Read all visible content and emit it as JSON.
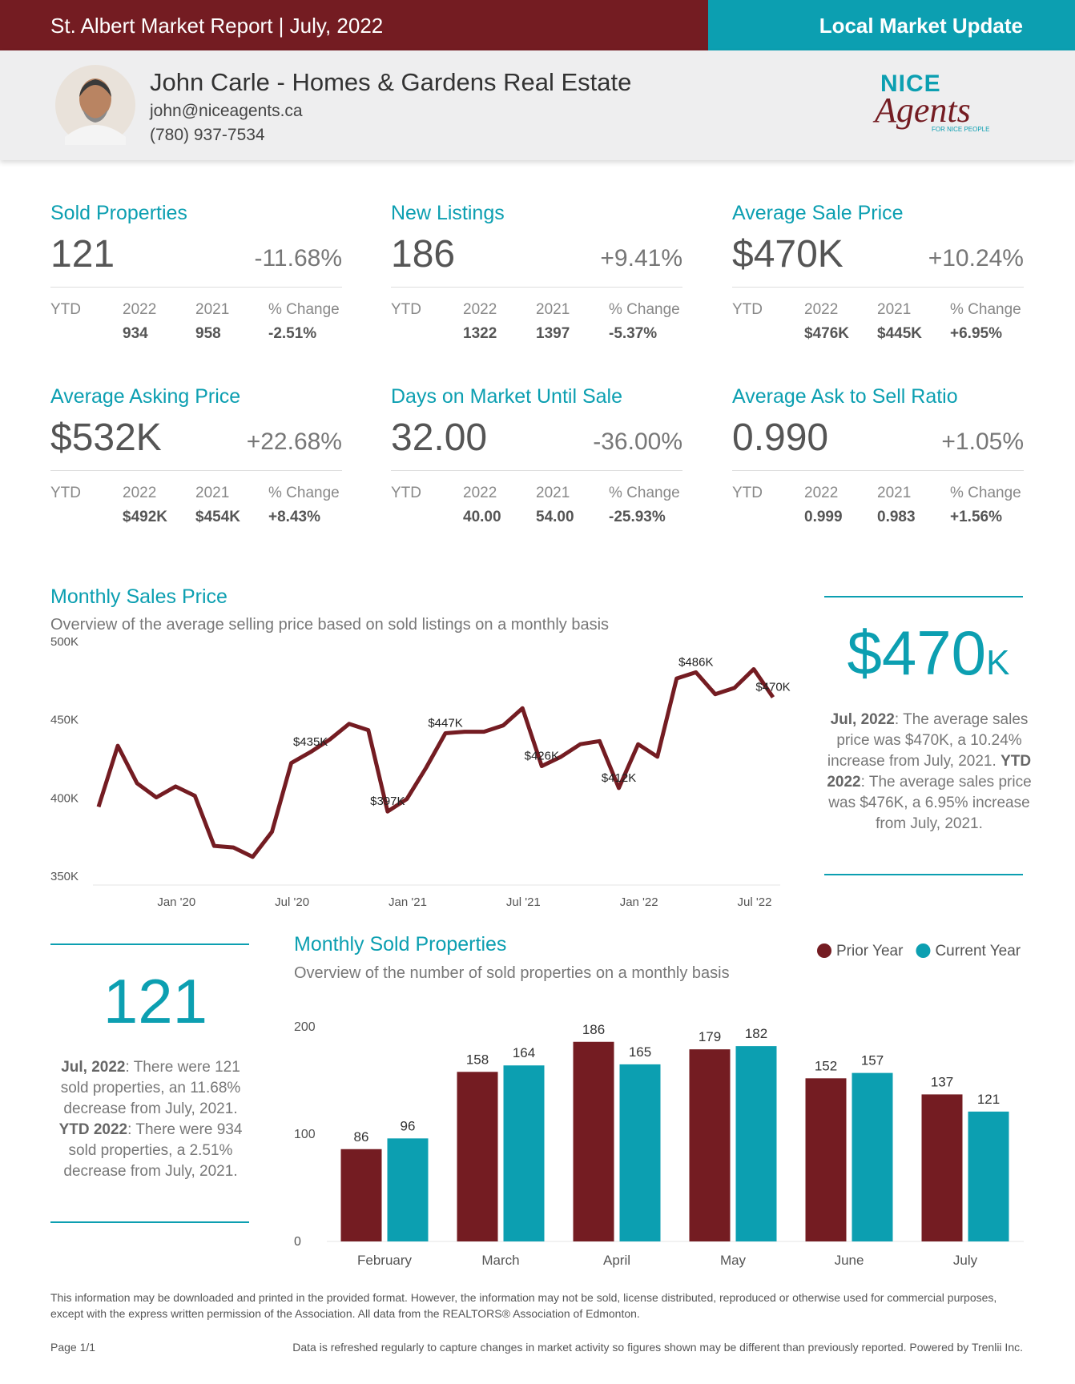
{
  "header": {
    "title": "St. Albert Market Report | July, 2022",
    "tag": "Local Market Update"
  },
  "agent": {
    "name": "John Carle - Homes & Gardens Real Estate",
    "email": "john@niceagents.ca",
    "phone": "(780) 937-7534"
  },
  "logo": {
    "line1": "NICE",
    "line2": "Agents",
    "tagline": "FOR NICE PEOPLE"
  },
  "cards": [
    {
      "title": "Sold Properties",
      "value": "121",
      "change": "-11.68%",
      "ytd": [
        "YTD",
        "2022",
        "2021",
        "% Change"
      ],
      "ytd_values": [
        "934",
        "958",
        "-2.51%"
      ]
    },
    {
      "title": "New Listings",
      "value": "186",
      "change": "+9.41%",
      "ytd": [
        "YTD",
        "2022",
        "2021",
        "% Change"
      ],
      "ytd_values": [
        "1322",
        "1397",
        "-5.37%"
      ]
    },
    {
      "title": "Average Sale Price",
      "value": "$470K",
      "change": "+10.24%",
      "ytd": [
        "YTD",
        "2022",
        "2021",
        "% Change"
      ],
      "ytd_values": [
        "$476K",
        "$445K",
        "+6.95%"
      ]
    },
    {
      "title": "Average Asking Price",
      "value": "$532K",
      "change": "+22.68%",
      "ytd": [
        "YTD",
        "2022",
        "2021",
        "% Change"
      ],
      "ytd_values": [
        "$492K",
        "$454K",
        "+8.43%"
      ]
    },
    {
      "title": "Days on Market Until Sale",
      "value": "32.00",
      "change": "-36.00%",
      "ytd": [
        "YTD",
        "2022",
        "2021",
        "% Change"
      ],
      "ytd_values": [
        "40.00",
        "54.00",
        "-25.93%"
      ]
    },
    {
      "title": "Average Ask to Sell Ratio",
      "value": "0.990",
      "change": "+1.05%",
      "ytd": [
        "YTD",
        "2022",
        "2021",
        "% Change"
      ],
      "ytd_values": [
        "0.999",
        "0.983",
        "+1.56%"
      ]
    }
  ],
  "price_panel": {
    "value": "$470",
    "unit": "K",
    "text": [
      "Jul, 2022",
      ": The average sales price was $470K, a 10.24% increase from July, 2021. ",
      "YTD 2022",
      ": The average sales price was $476K, a 6.95% increase from July, 2021."
    ]
  },
  "sold_panel": {
    "value": "121",
    "text": [
      "Jul, 2022",
      ": There were 121 sold properties, an 11.68% decrease from July, 2021. ",
      "YTD 2022",
      ": There were 934 sold properties, a 2.51% decrease from July, 2021."
    ]
  },
  "chart_data": [
    {
      "type": "line",
      "title": "Monthly Sales Price",
      "subtitle": "Overview of the average selling price based on sold listings on a monthly basis",
      "categories": [
        null,
        null,
        null,
        null,
        null,
        "Jan '20",
        null,
        null,
        null,
        null,
        null,
        "Jul '20",
        null,
        null,
        null,
        null,
        null,
        "Jan '21",
        null,
        null,
        null,
        null,
        null,
        "Jul '21",
        null,
        null,
        null,
        null,
        null,
        "Jan '22",
        null,
        null,
        null,
        null,
        null,
        "Jul '22"
      ],
      "values": [
        400,
        439,
        415,
        406,
        413,
        407,
        375,
        374,
        368,
        384,
        428,
        435,
        443,
        453,
        449,
        397,
        405,
        425,
        447,
        448,
        448,
        452,
        463,
        426,
        432,
        440,
        442,
        412,
        440,
        432,
        482,
        486,
        472,
        476,
        488,
        470
      ],
      "value_labels": [
        null,
        null,
        null,
        null,
        null,
        null,
        null,
        null,
        null,
        null,
        null,
        "$435K",
        null,
        null,
        null,
        "$397K",
        null,
        null,
        "$447K",
        null,
        null,
        null,
        null,
        "$426K",
        null,
        null,
        null,
        "$412K",
        null,
        null,
        null,
        "$486K",
        null,
        null,
        null,
        "$470K"
      ],
      "color": "#741c22",
      "ylim": [
        350,
        500
      ],
      "yticks": [
        {
          "value": 350,
          "label": "350K"
        },
        {
          "value": 400,
          "label": "400K"
        },
        {
          "value": 450,
          "label": "450K"
        },
        {
          "value": 500,
          "label": "500K"
        }
      ],
      "grid": false
    },
    {
      "type": "bar",
      "title": "Monthly Sold Properties",
      "subtitle": "Overview of the number of sold properties on a monthly basis",
      "categories": [
        "February",
        "March",
        "April",
        "May",
        "June",
        "July"
      ],
      "series": [
        {
          "name": "Prior Year",
          "color": "#741c22",
          "values": [
            86,
            158,
            186,
            179,
            152,
            137
          ]
        },
        {
          "name": "Current Year",
          "color": "#0c9fb1",
          "values": [
            96,
            164,
            165,
            182,
            157,
            121
          ]
        }
      ],
      "ylim": [
        0,
        200
      ],
      "yticks": [
        0,
        100,
        200
      ],
      "grid": false,
      "legend": "top-right"
    }
  ],
  "footer": {
    "disclaimer": "This information may be downloaded and printed in the provided format. However, the information may not be sold, license distributed, reproduced or otherwise used for commercial purposes, except with the express written permission of the Association. All data from the REALTORS® Association of Edmonton.",
    "page": "Page 1/1",
    "note": "Data is refreshed regularly to capture changes in market activity so figures shown may be different than previously reported. Powered by Trenlii Inc."
  }
}
